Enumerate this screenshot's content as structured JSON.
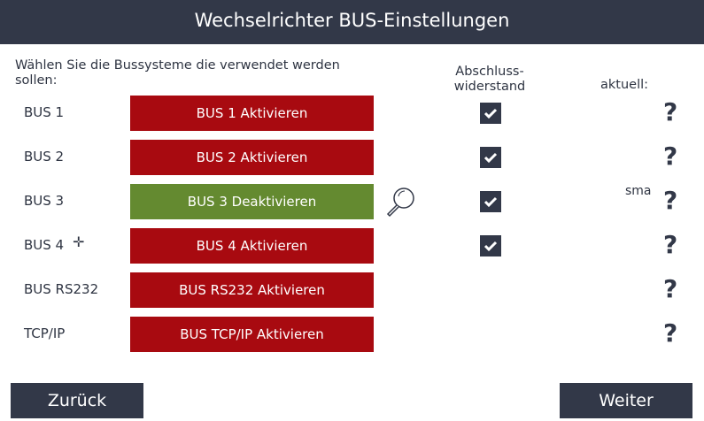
{
  "header": {
    "title": "Wechselrichter BUS-Einstellungen"
  },
  "intro": "Wählen Sie die Bussysteme die verwendet werden sollen:",
  "columns": {
    "termination": "Abschluss-\nwiderstand",
    "current": "aktuell:"
  },
  "colors": {
    "inactive": "#a80a10",
    "active": "#648a30",
    "dark": "#323848"
  },
  "rows": [
    {
      "label": "BUS 1",
      "button": "BUS 1 Aktivieren",
      "active": false,
      "termination": true,
      "current": "",
      "status": "?"
    },
    {
      "label": "BUS 2",
      "button": "BUS 2 Aktivieren",
      "active": false,
      "termination": true,
      "current": "",
      "status": "?"
    },
    {
      "label": "BUS 3",
      "button": "BUS 3 Deaktivieren",
      "active": true,
      "termination": true,
      "current": "sma",
      "status": "?"
    },
    {
      "label": "BUS 4",
      "button": "BUS 4 Aktivieren",
      "active": false,
      "termination": true,
      "current": "",
      "status": "?"
    },
    {
      "label": "BUS RS232",
      "button": "BUS RS232 Aktivieren",
      "active": false,
      "termination": false,
      "current": "",
      "status": "?"
    },
    {
      "label": "TCP/IP",
      "button": "BUS TCP/IP Aktivieren",
      "active": false,
      "termination": false,
      "current": "",
      "status": "?"
    }
  ],
  "footer": {
    "back": "Zurück",
    "next": "Weiter"
  }
}
